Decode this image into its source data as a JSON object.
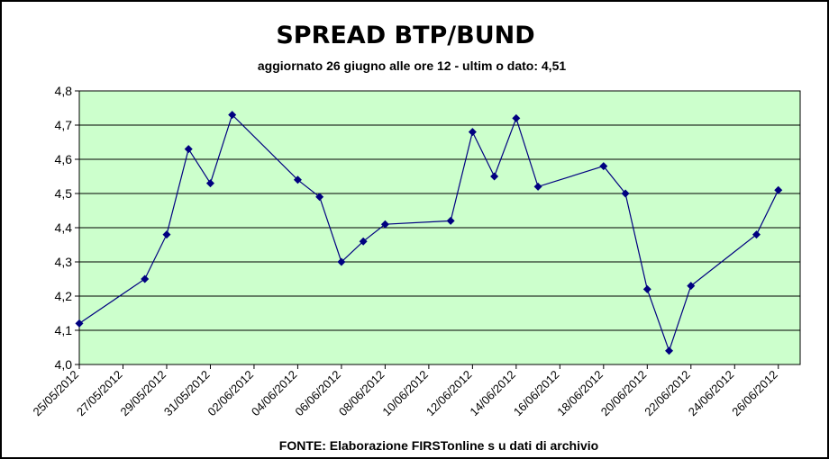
{
  "chart_data": {
    "type": "line",
    "title": "SPREAD BTP/BUND",
    "subtitle": "aggiornato 26 giugno alle ore 12 - ultim o dato: 4,51",
    "source": "FONTE: Elaborazione FIRSTonline s u dati di archivio",
    "xlabel": "",
    "ylabel": "",
    "ylim": [
      4.0,
      4.8
    ],
    "yticks": [
      "4,0",
      "4,1",
      "4,2",
      "4,3",
      "4,4",
      "4,5",
      "4,6",
      "4,7",
      "4,8"
    ],
    "xlim": [
      "25/05/2012",
      "27/06/2012"
    ],
    "xticks": [
      "25/05/2012",
      "27/05/2012",
      "29/05/2012",
      "31/05/2012",
      "02/06/2012",
      "04/06/2012",
      "06/06/2012",
      "08/06/2012",
      "10/06/2012",
      "12/06/2012",
      "14/06/2012",
      "16/06/2012",
      "18/06/2012",
      "20/06/2012",
      "22/06/2012",
      "24/06/2012",
      "26/06/2012"
    ],
    "grid": true,
    "colors": {
      "plot_background": "#ccffcc",
      "line": "#000080",
      "marker": "#000080",
      "gridline": "#000000"
    },
    "series": [
      {
        "points": [
          {
            "x": "25/05/2012",
            "y": 4.12
          },
          {
            "x": "28/05/2012",
            "y": 4.25
          },
          {
            "x": "29/05/2012",
            "y": 4.38
          },
          {
            "x": "30/05/2012",
            "y": 4.63
          },
          {
            "x": "31/05/2012",
            "y": 4.53
          },
          {
            "x": "01/06/2012",
            "y": 4.73
          },
          {
            "x": "04/06/2012",
            "y": 4.54
          },
          {
            "x": "05/06/2012",
            "y": 4.49
          },
          {
            "x": "06/06/2012",
            "y": 4.3
          },
          {
            "x": "07/06/2012",
            "y": 4.36
          },
          {
            "x": "08/06/2012",
            "y": 4.41
          },
          {
            "x": "11/06/2012",
            "y": 4.42
          },
          {
            "x": "12/06/2012",
            "y": 4.68
          },
          {
            "x": "13/06/2012",
            "y": 4.55
          },
          {
            "x": "14/06/2012",
            "y": 4.72
          },
          {
            "x": "15/06/2012",
            "y": 4.52
          },
          {
            "x": "18/06/2012",
            "y": 4.58
          },
          {
            "x": "19/06/2012",
            "y": 4.5
          },
          {
            "x": "20/06/2012",
            "y": 4.22
          },
          {
            "x": "21/06/2012",
            "y": 4.04
          },
          {
            "x": "22/06/2012",
            "y": 4.23
          },
          {
            "x": "25/06/2012",
            "y": 4.38
          },
          {
            "x": "26/06/2012",
            "y": 4.51
          }
        ]
      }
    ]
  }
}
